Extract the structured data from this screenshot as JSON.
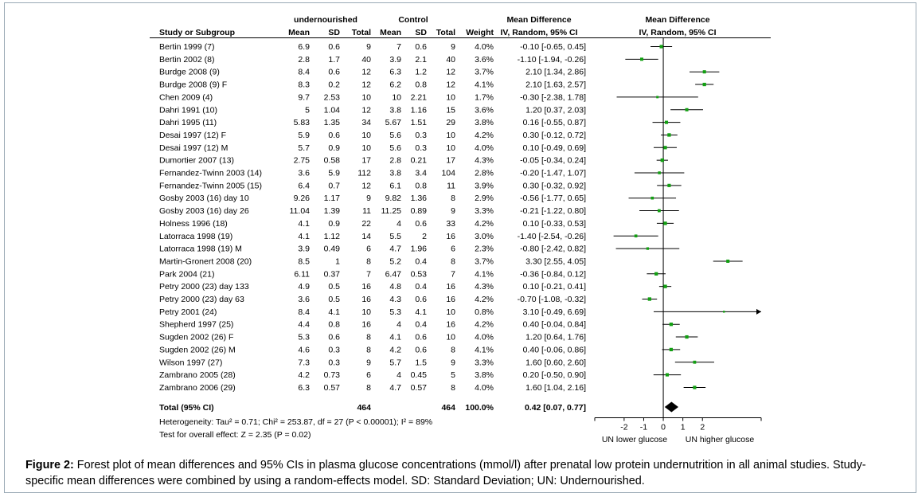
{
  "chart_data": {
    "type": "forest",
    "group_headers": {
      "experimental": "undernourished",
      "control": "Control"
    },
    "column_headers": [
      "Study or Subgroup",
      "Mean",
      "SD",
      "Total",
      "Mean",
      "SD",
      "Total",
      "Weight",
      "IV, Random, 95% CI"
    ],
    "effect_header": "Mean Difference",
    "plot_header": {
      "line1": "Mean Difference",
      "line2": "IV, Random, 95% CI"
    },
    "studies": [
      {
        "name": "Bertin 1999 (7)",
        "e_mean": "6.9",
        "e_sd": "0.6",
        "e_total": "9",
        "c_mean": "7",
        "c_sd": "0.6",
        "c_total": "9",
        "weight": "4.0%",
        "ci_text": "-0.10 [-0.65, 0.45]",
        "md": -0.1,
        "lo": -0.65,
        "hi": 0.45
      },
      {
        "name": "Bertin 2002 (8)",
        "e_mean": "2.8",
        "e_sd": "1.7",
        "e_total": "40",
        "c_mean": "3.9",
        "c_sd": "2.1",
        "c_total": "40",
        "weight": "3.6%",
        "ci_text": "-1.10 [-1.94, -0.26]",
        "md": -1.1,
        "lo": -1.94,
        "hi": -0.26
      },
      {
        "name": "Burdge 2008 (9)",
        "e_mean": "8.4",
        "e_sd": "0.6",
        "e_total": "12",
        "c_mean": "6.3",
        "c_sd": "1.2",
        "c_total": "12",
        "weight": "3.7%",
        "ci_text": "2.10 [1.34, 2.86]",
        "md": 2.1,
        "lo": 1.34,
        "hi": 2.86
      },
      {
        "name": "Burdge 2008 (9) F",
        "e_mean": "8.3",
        "e_sd": "0.2",
        "e_total": "12",
        "c_mean": "6.2",
        "c_sd": "0.8",
        "c_total": "12",
        "weight": "4.1%",
        "ci_text": "2.10 [1.63, 2.57]",
        "md": 2.1,
        "lo": 1.63,
        "hi": 2.57
      },
      {
        "name": "Chen 2009 (4)",
        "e_mean": "9.7",
        "e_sd": "2.53",
        "e_total": "10",
        "c_mean": "10",
        "c_sd": "2.21",
        "c_total": "10",
        "weight": "1.7%",
        "ci_text": "-0.30 [-2.38, 1.78]",
        "md": -0.3,
        "lo": -2.38,
        "hi": 1.78
      },
      {
        "name": "Dahri 1991 (10)",
        "e_mean": "5",
        "e_sd": "1.04",
        "e_total": "12",
        "c_mean": "3.8",
        "c_sd": "1.16",
        "c_total": "15",
        "weight": "3.6%",
        "ci_text": "1.20 [0.37, 2.03]",
        "md": 1.2,
        "lo": 0.37,
        "hi": 2.03
      },
      {
        "name": "Dahri 1995 (11)",
        "e_mean": "5.83",
        "e_sd": "1.35",
        "e_total": "34",
        "c_mean": "5.67",
        "c_sd": "1.51",
        "c_total": "29",
        "weight": "3.8%",
        "ci_text": "0.16 [-0.55, 0.87]",
        "md": 0.16,
        "lo": -0.55,
        "hi": 0.87
      },
      {
        "name": "Desai 1997 (12) F",
        "e_mean": "5.9",
        "e_sd": "0.6",
        "e_total": "10",
        "c_mean": "5.6",
        "c_sd": "0.3",
        "c_total": "10",
        "weight": "4.2%",
        "ci_text": "0.30 [-0.12, 0.72]",
        "md": 0.3,
        "lo": -0.12,
        "hi": 0.72
      },
      {
        "name": "Desai 1997 (12) M",
        "e_mean": "5.7",
        "e_sd": "0.9",
        "e_total": "10",
        "c_mean": "5.6",
        "c_sd": "0.3",
        "c_total": "10",
        "weight": "4.0%",
        "ci_text": "0.10 [-0.49, 0.69]",
        "md": 0.1,
        "lo": -0.49,
        "hi": 0.69
      },
      {
        "name": "Dumortier 2007 (13)",
        "e_mean": "2.75",
        "e_sd": "0.58",
        "e_total": "17",
        "c_mean": "2.8",
        "c_sd": "0.21",
        "c_total": "17",
        "weight": "4.3%",
        "ci_text": "-0.05 [-0.34, 0.24]",
        "md": -0.05,
        "lo": -0.34,
        "hi": 0.24
      },
      {
        "name": "Fernandez-Twinn 2003 (14)",
        "e_mean": "3.6",
        "e_sd": "5.9",
        "e_total": "112",
        "c_mean": "3.8",
        "c_sd": "3.4",
        "c_total": "104",
        "weight": "2.8%",
        "ci_text": "-0.20 [-1.47, 1.07]",
        "md": -0.2,
        "lo": -1.47,
        "hi": 1.07
      },
      {
        "name": "Fernandez-Twinn 2005 (15)",
        "e_mean": "6.4",
        "e_sd": "0.7",
        "e_total": "12",
        "c_mean": "6.1",
        "c_sd": "0.8",
        "c_total": "11",
        "weight": "3.9%",
        "ci_text": "0.30 [-0.32, 0.92]",
        "md": 0.3,
        "lo": -0.32,
        "hi": 0.92
      },
      {
        "name": "Gosby 2003 (16) day 10",
        "e_mean": "9.26",
        "e_sd": "1.17",
        "e_total": "9",
        "c_mean": "9.82",
        "c_sd": "1.36",
        "c_total": "8",
        "weight": "2.9%",
        "ci_text": "-0.56 [-1.77, 0.65]",
        "md": -0.56,
        "lo": -1.77,
        "hi": 0.65
      },
      {
        "name": "Gosby 2003 (16) day 26",
        "e_mean": "11.04",
        "e_sd": "1.39",
        "e_total": "11",
        "c_mean": "11.25",
        "c_sd": "0.89",
        "c_total": "9",
        "weight": "3.3%",
        "ci_text": "-0.21 [-1.22, 0.80]",
        "md": -0.21,
        "lo": -1.22,
        "hi": 0.8
      },
      {
        "name": "Holness 1996 (18)",
        "e_mean": "4.1",
        "e_sd": "0.9",
        "e_total": "22",
        "c_mean": "4",
        "c_sd": "0.6",
        "c_total": "33",
        "weight": "4.2%",
        "ci_text": "0.10 [-0.33, 0.53]",
        "md": 0.1,
        "lo": -0.33,
        "hi": 0.53
      },
      {
        "name": "Latorraca 1998 (19)",
        "e_mean": "4.1",
        "e_sd": "1.12",
        "e_total": "14",
        "c_mean": "5.5",
        "c_sd": "2",
        "c_total": "16",
        "weight": "3.0%",
        "ci_text": "-1.40 [-2.54, -0.26]",
        "md": -1.4,
        "lo": -2.54,
        "hi": -0.26
      },
      {
        "name": "Latorraca 1998 (19) M",
        "e_mean": "3.9",
        "e_sd": "0.49",
        "e_total": "6",
        "c_mean": "4.7",
        "c_sd": "1.96",
        "c_total": "6",
        "weight": "2.3%",
        "ci_text": "-0.80 [-2.42, 0.82]",
        "md": -0.8,
        "lo": -2.42,
        "hi": 0.82
      },
      {
        "name": "Martin-Gronert 2008 (20)",
        "e_mean": "8.5",
        "e_sd": "1",
        "e_total": "8",
        "c_mean": "5.2",
        "c_sd": "0.4",
        "c_total": "8",
        "weight": "3.7%",
        "ci_text": "3.30 [2.55, 4.05]",
        "md": 3.3,
        "lo": 2.55,
        "hi": 4.05
      },
      {
        "name": "Park 2004 (21)",
        "e_mean": "6.11",
        "e_sd": "0.37",
        "e_total": "7",
        "c_mean": "6.47",
        "c_sd": "0.53",
        "c_total": "7",
        "weight": "4.1%",
        "ci_text": "-0.36 [-0.84, 0.12]",
        "md": -0.36,
        "lo": -0.84,
        "hi": 0.12
      },
      {
        "name": "Petry 2000 (23) day 133",
        "e_mean": "4.9",
        "e_sd": "0.5",
        "e_total": "16",
        "c_mean": "4.8",
        "c_sd": "0.4",
        "c_total": "16",
        "weight": "4.3%",
        "ci_text": "0.10 [-0.21, 0.41]",
        "md": 0.1,
        "lo": -0.21,
        "hi": 0.41
      },
      {
        "name": "Petry 2000 (23) day 63",
        "e_mean": "3.6",
        "e_sd": "0.5",
        "e_total": "16",
        "c_mean": "4.3",
        "c_sd": "0.6",
        "c_total": "16",
        "weight": "4.2%",
        "ci_text": "-0.70 [-1.08, -0.32]",
        "md": -0.7,
        "lo": -1.08,
        "hi": -0.32
      },
      {
        "name": "Petry 2001 (24)",
        "e_mean": "8.4",
        "e_sd": "4.1",
        "e_total": "10",
        "c_mean": "5.3",
        "c_sd": "4.1",
        "c_total": "10",
        "weight": "0.8%",
        "ci_text": "3.10 [-0.49, 6.69]",
        "md": 3.1,
        "lo": -0.49,
        "hi": 6.69
      },
      {
        "name": "Shepherd 1997 (25)",
        "e_mean": "4.4",
        "e_sd": "0.8",
        "e_total": "16",
        "c_mean": "4",
        "c_sd": "0.4",
        "c_total": "16",
        "weight": "4.2%",
        "ci_text": "0.40 [-0.04, 0.84]",
        "md": 0.4,
        "lo": -0.04,
        "hi": 0.84
      },
      {
        "name": "Sugden 2002 (26) F",
        "e_mean": "5.3",
        "e_sd": "0.6",
        "e_total": "8",
        "c_mean": "4.1",
        "c_sd": "0.6",
        "c_total": "10",
        "weight": "4.0%",
        "ci_text": "1.20 [0.64, 1.76]",
        "md": 1.2,
        "lo": 0.64,
        "hi": 1.76
      },
      {
        "name": "Sugden 2002 (26) M",
        "e_mean": "4.6",
        "e_sd": "0.3",
        "e_total": "8",
        "c_mean": "4.2",
        "c_sd": "0.6",
        "c_total": "8",
        "weight": "4.1%",
        "ci_text": "0.40 [-0.06, 0.86]",
        "md": 0.4,
        "lo": -0.06,
        "hi": 0.86
      },
      {
        "name": "Wilson 1997 (27)",
        "e_mean": "7.3",
        "e_sd": "0.3",
        "e_total": "9",
        "c_mean": "5.7",
        "c_sd": "1.5",
        "c_total": "9",
        "weight": "3.3%",
        "ci_text": "1.60 [0.60, 2.60]",
        "md": 1.6,
        "lo": 0.6,
        "hi": 2.6
      },
      {
        "name": "Zambrano 2005 (28)",
        "e_mean": "4.2",
        "e_sd": "0.73",
        "e_total": "6",
        "c_mean": "4",
        "c_sd": "0.45",
        "c_total": "5",
        "weight": "3.8%",
        "ci_text": "0.20 [-0.50, 0.90]",
        "md": 0.2,
        "lo": -0.5,
        "hi": 0.9
      },
      {
        "name": "Zambrano 2006 (29)",
        "e_mean": "6.3",
        "e_sd": "0.57",
        "e_total": "8",
        "c_mean": "4.7",
        "c_sd": "0.57",
        "c_total": "8",
        "weight": "4.0%",
        "ci_text": "1.60 [1.04, 2.16]",
        "md": 1.6,
        "lo": 1.04,
        "hi": 2.16
      }
    ],
    "total": {
      "label": "Total (95% CI)",
      "e_total": "464",
      "c_total": "464",
      "weight": "100.0%",
      "ci_text": "0.42 [0.07, 0.77]",
      "md": 0.42,
      "lo": 0.07,
      "hi": 0.77
    },
    "heterogeneity": "Heterogeneity: Tau² = 0.71; Chi² = 253.87, df = 27 (P < 0.00001); I² = 89%",
    "overall_effect": "Test for overall effect: Z = 2.35 (P = 0.02)",
    "x_ticks": [
      -2,
      -1,
      0,
      1,
      2
    ],
    "x_tick_labels": [
      "-2",
      "-1",
      "0",
      "1",
      "2"
    ],
    "xlim": [
      -3.5,
      5
    ],
    "x_label_left": "UN lower glucose",
    "x_label_right": "UN higher glucose",
    "marker_color": "#12a012"
  },
  "caption": {
    "label": "Figure 2:",
    "text": " Forest plot of mean differences and 95% CIs in plasma glucose concentrations (mmol/l) after prenatal low protein undernutrition in all animal studies. Study-specific mean differences were combined by using a random-effects model. SD: Standard Deviation; UN: Undernourished."
  }
}
